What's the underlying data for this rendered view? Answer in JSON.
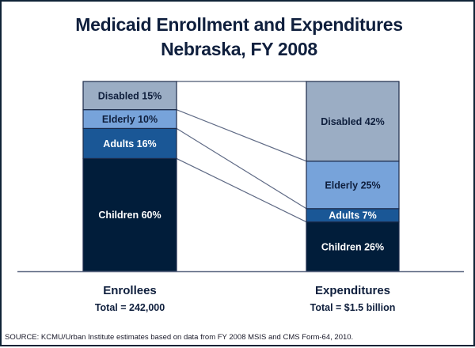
{
  "chart_data": {
    "type": "bar",
    "subtype": "stacked-100-percent",
    "title": "Medicaid Enrollment and Expenditures",
    "subtitle": "Nebraska, FY 2008",
    "categories": [
      "Enrollees",
      "Expenditures"
    ],
    "category_totals": [
      "Total = 242,000",
      "Total = $1.5 billion"
    ],
    "series": [
      {
        "name": "Children",
        "values": [
          60,
          26
        ],
        "color": "#011d3a",
        "text_color": "#ffffff"
      },
      {
        "name": "Adults",
        "values": [
          16,
          7
        ],
        "color": "#1a5796",
        "text_color": "#ffffff"
      },
      {
        "name": "Elderly",
        "values": [
          10,
          25
        ],
        "color": "#77a3da",
        "text_color": "#0f1f3d"
      },
      {
        "name": "Disabled",
        "values": [
          15,
          42
        ],
        "color": "#9badc4",
        "text_color": "#0f1f3d"
      }
    ],
    "value_suffix": "%",
    "connector_lines": true,
    "legend": "none",
    "grid": false
  },
  "title_lines": [
    "Medicaid Enrollment and Expenditures",
    "Nebraska, FY 2008"
  ],
  "source_note": "SOURCE:  KCMU/Urban Institute estimates based on data from FY 2008 MSIS and CMS Form-64,  2010."
}
